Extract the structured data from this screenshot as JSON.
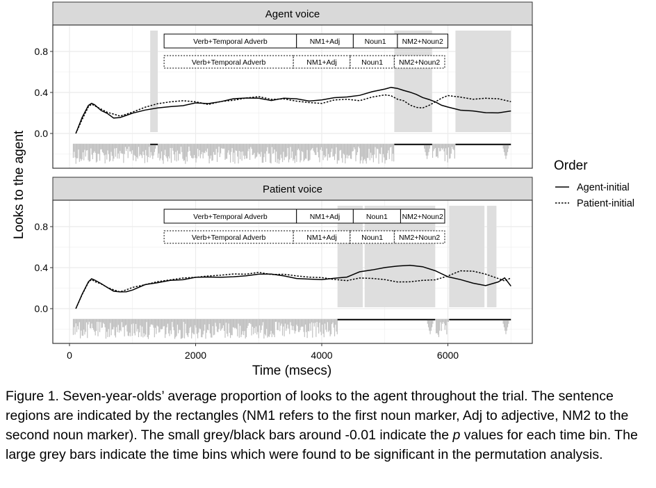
{
  "chart_data": {
    "type": "line",
    "ylabel": "Looks to the agent",
    "xlabel": "Time (msecs)",
    "xlim": [
      0,
      7200
    ],
    "ylim": [
      -0.18,
      0.96
    ],
    "x_ticks": [
      0,
      2000,
      4000,
      6000
    ],
    "x_tick_labels": [
      "0",
      "2000",
      "4000",
      "6000"
    ],
    "y_ticks": [
      0.0,
      0.4,
      0.8
    ],
    "y_tick_labels": [
      "0.0",
      "0.4",
      "0.8"
    ],
    "grid": true,
    "legend": {
      "title": "Order",
      "position": "right",
      "entries": [
        {
          "label": "Agent-initial",
          "linestyle": "solid"
        },
        {
          "label": "Patient-initial",
          "linestyle": "dashed"
        }
      ]
    },
    "colors": {
      "line": "#000000",
      "sig_band": "#dedede",
      "pvalue_bar": "#c0c0c0",
      "strip": "#d9d9d9",
      "panel_border": "#333333",
      "grid": "#ebebeb"
    },
    "panels": [
      {
        "strip": "Agent voice",
        "regions_agent_initial": [
          {
            "label": "Verb+Temporal Adverb",
            "start": 1500,
            "end": 3600
          },
          {
            "label": "NM1+Adj",
            "start": 3600,
            "end": 4500
          },
          {
            "label": "Noun1",
            "start": 4500,
            "end": 5200
          },
          {
            "label": "NM2+Noun2",
            "start": 5200,
            "end": 6000
          }
        ],
        "regions_patient_initial": [
          {
            "label": "Verb+Temporal Adverb",
            "start": 1500,
            "end": 3550
          },
          {
            "label": "NM1+Adj",
            "start": 3550,
            "end": 4450
          },
          {
            "label": "Noun1",
            "start": 4450,
            "end": 5150
          },
          {
            "label": "NM2+Noun2",
            "start": 5150,
            "end": 5950
          }
        ],
        "significant_windows": [
          [
            1280,
            1400
          ],
          [
            5150,
            5750
          ],
          [
            6120,
            7000
          ]
        ],
        "black_pvalue_windows": [
          [
            1280,
            1400
          ],
          [
            5150,
            5750
          ],
          [
            6120,
            7000
          ]
        ],
        "series": [
          {
            "name": "Agent-initial",
            "linestyle": "solid",
            "x": [
              100,
              200,
              300,
              350,
              400,
              500,
              600,
              700,
              800,
              900,
              1000,
              1200,
              1400,
              1600,
              1800,
              2000,
              2200,
              2400,
              2600,
              2800,
              3000,
              3200,
              3400,
              3600,
              3800,
              4000,
              4200,
              4400,
              4600,
              4800,
              5000,
              5100,
              5200,
              5300,
              5400,
              5500,
              5600,
              5700,
              5800,
              5900,
              6000,
              6200,
              6400,
              6600,
              6800,
              7000
            ],
            "y": [
              0.0,
              0.15,
              0.27,
              0.3,
              0.28,
              0.23,
              0.19,
              0.16,
              0.16,
              0.18,
              0.2,
              0.23,
              0.25,
              0.27,
              0.28,
              0.29,
              0.3,
              0.31,
              0.33,
              0.34,
              0.35,
              0.33,
              0.35,
              0.33,
              0.31,
              0.33,
              0.34,
              0.36,
              0.38,
              0.41,
              0.43,
              0.45,
              0.44,
              0.42,
              0.4,
              0.38,
              0.36,
              0.33,
              0.3,
              0.27,
              0.25,
              0.23,
              0.22,
              0.21,
              0.2,
              0.22
            ]
          },
          {
            "name": "Patient-initial",
            "linestyle": "dashed",
            "x": [
              100,
              200,
              300,
              350,
              400,
              500,
              600,
              700,
              800,
              900,
              1000,
              1200,
              1400,
              1600,
              1800,
              2000,
              2200,
              2400,
              2600,
              2800,
              3000,
              3200,
              3400,
              3600,
              3800,
              4000,
              4200,
              4400,
              4600,
              4800,
              5000,
              5100,
              5200,
              5300,
              5400,
              5500,
              5600,
              5700,
              5800,
              5900,
              6000,
              6200,
              6400,
              6600,
              6800,
              7000
            ],
            "y": [
              0.0,
              0.14,
              0.26,
              0.28,
              0.27,
              0.24,
              0.2,
              0.18,
              0.17,
              0.19,
              0.21,
              0.25,
              0.29,
              0.3,
              0.31,
              0.3,
              0.29,
              0.31,
              0.32,
              0.35,
              0.36,
              0.34,
              0.33,
              0.32,
              0.31,
              0.3,
              0.32,
              0.34,
              0.33,
              0.35,
              0.38,
              0.36,
              0.34,
              0.31,
              0.28,
              0.26,
              0.25,
              0.28,
              0.31,
              0.34,
              0.37,
              0.35,
              0.33,
              0.34,
              0.33,
              0.31
            ]
          }
        ]
      },
      {
        "strip": "Patient voice",
        "regions_agent_initial": [
          {
            "label": "Verb+Temporal Adverb",
            "start": 1500,
            "end": 3600
          },
          {
            "label": "NM1+Adj",
            "start": 3600,
            "end": 4500
          },
          {
            "label": "Noun1",
            "start": 4500,
            "end": 5250
          },
          {
            "label": "NM2+Noun2",
            "start": 5250,
            "end": 5950
          }
        ],
        "regions_patient_initial": [
          {
            "label": "Verb+Temporal Adverb",
            "start": 1500,
            "end": 3550
          },
          {
            "label": "NM1+Adj",
            "start": 3550,
            "end": 4450
          },
          {
            "label": "Noun1",
            "start": 4450,
            "end": 5150
          },
          {
            "label": "NM2+Noun2",
            "start": 5150,
            "end": 5950
          }
        ],
        "significant_windows": [
          [
            4250,
            4650
          ],
          [
            4680,
            5800
          ],
          [
            6020,
            6580
          ],
          [
            6620,
            6770
          ]
        ],
        "black_pvalue_windows": [
          [
            4250,
            5800
          ],
          [
            6020,
            7000
          ]
        ],
        "series": [
          {
            "name": "Agent-initial",
            "linestyle": "solid",
            "x": [
              100,
              200,
              300,
              350,
              400,
              500,
              600,
              700,
              800,
              900,
              1000,
              1200,
              1400,
              1600,
              1800,
              2000,
              2200,
              2400,
              2600,
              2800,
              3000,
              3200,
              3400,
              3600,
              3800,
              4000,
              4200,
              4400,
              4600,
              4800,
              5000,
              5200,
              5400,
              5600,
              5800,
              6000,
              6200,
              6400,
              6600,
              6800,
              6900,
              7000
            ],
            "y": [
              0.0,
              0.15,
              0.27,
              0.29,
              0.28,
              0.24,
              0.2,
              0.17,
              0.16,
              0.17,
              0.19,
              0.23,
              0.26,
              0.28,
              0.29,
              0.3,
              0.3,
              0.31,
              0.32,
              0.33,
              0.34,
              0.33,
              0.32,
              0.3,
              0.29,
              0.28,
              0.29,
              0.31,
              0.35,
              0.38,
              0.4,
              0.42,
              0.43,
              0.41,
              0.37,
              0.32,
              0.28,
              0.24,
              0.23,
              0.26,
              0.29,
              0.22
            ]
          },
          {
            "name": "Patient-initial",
            "linestyle": "dashed",
            "x": [
              100,
              200,
              300,
              350,
              400,
              500,
              600,
              700,
              800,
              900,
              1000,
              1200,
              1400,
              1600,
              1800,
              2000,
              2200,
              2400,
              2600,
              2800,
              3000,
              3200,
              3400,
              3600,
              3800,
              4000,
              4200,
              4400,
              4600,
              4800,
              5000,
              5200,
              5400,
              5600,
              5800,
              6000,
              6200,
              6400,
              6600,
              6800,
              6900,
              7000
            ],
            "y": [
              0.0,
              0.14,
              0.26,
              0.28,
              0.27,
              0.24,
              0.21,
              0.18,
              0.17,
              0.18,
              0.2,
              0.24,
              0.27,
              0.29,
              0.3,
              0.31,
              0.31,
              0.32,
              0.33,
              0.34,
              0.36,
              0.34,
              0.33,
              0.31,
              0.3,
              0.3,
              0.29,
              0.27,
              0.3,
              0.29,
              0.28,
              0.27,
              0.26,
              0.27,
              0.28,
              0.32,
              0.36,
              0.37,
              0.34,
              0.3,
              0.28,
              0.3
            ]
          }
        ]
      }
    ]
  },
  "caption": {
    "part1": "Figure 1. Seven-year-olds’ average proportion of looks to the agent throughout the trial. The sentence regions are indicated by the rectangles (NM1 refers to the first noun marker, Adj to adjective, NM2 to the second noun marker). The small grey/black bars around -0.01 indicate the ",
    "p_symbol": "p",
    "part2": " values for each time bin. The large grey bars indicate the time bins which were found to be significant in the permutation analysis."
  }
}
